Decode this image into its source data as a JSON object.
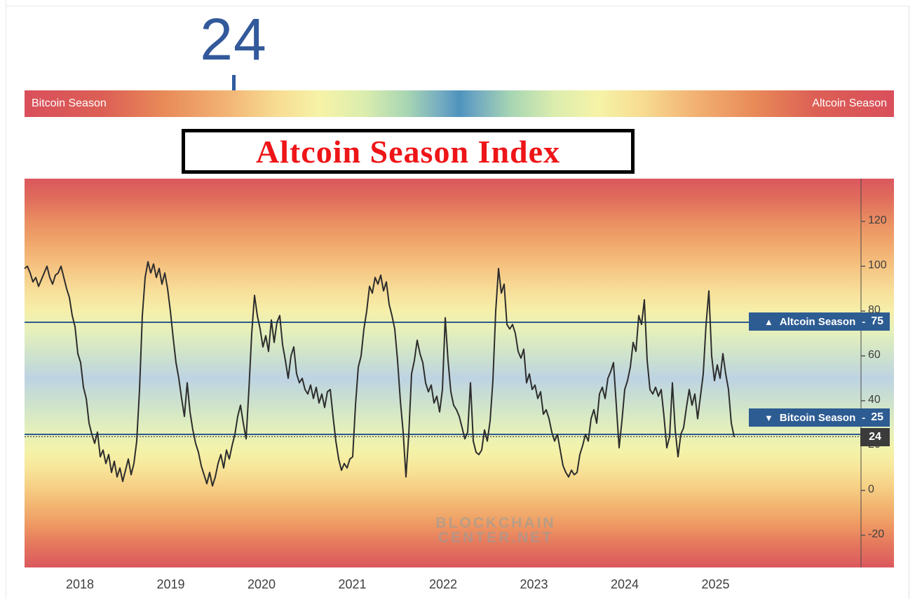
{
  "header": {
    "current_value": "24"
  },
  "season_bar": {
    "left_label": "Bitcoin Season",
    "right_label": "Altcoin Season",
    "marker_value": 24,
    "scale_min": 0,
    "scale_max": 100
  },
  "title_box": {
    "text": "Altcoin Season Index"
  },
  "watermark": {
    "line1": "BLOCKCHAIN",
    "line2": "CENTER.NET"
  },
  "colors": {
    "accent_blue": "#2f5b9f",
    "threshold_box_blue": "#2d5c92",
    "title_red": "#ee1518",
    "current_box_dark": "#3b3b3b",
    "line_black": "#2d2d2d"
  },
  "chart_data": {
    "type": "line",
    "title": "Altcoin Season Index",
    "x_ticks": [
      2018,
      2019,
      2020,
      2021,
      2022,
      2023,
      2024,
      2025
    ],
    "y_ticks": [
      120,
      100,
      80,
      60,
      40,
      20,
      0,
      -20
    ],
    "y_axis_side": "right",
    "grid": false,
    "legend": "none",
    "background": "season gradient red-orange-yellow-green-blue(center 50)-green-yellow-orange-red",
    "thresholds": {
      "altcoin": {
        "label": "▲ Altcoin Season",
        "value": 75
      },
      "bitcoin": {
        "label": "▼ Bitcoin Season",
        "value": 25
      },
      "current": {
        "value": 24,
        "style": "dotted"
      }
    },
    "series": {
      "name": "Altcoin Season Index",
      "t_start": 2017.39,
      "t_step": 0.030888,
      "values": [
        99,
        100,
        97,
        93,
        95,
        91,
        94,
        97,
        100,
        95,
        92,
        96,
        97,
        100,
        95,
        90,
        86,
        78,
        73,
        61,
        57,
        46,
        41,
        30,
        25,
        21,
        26,
        15,
        18,
        12,
        16,
        8,
        13,
        6,
        10,
        4,
        9,
        14,
        7,
        12,
        22,
        45,
        78,
        95,
        102,
        97,
        101,
        95,
        99,
        92,
        97,
        90,
        80,
        68,
        57,
        50,
        41,
        33,
        48,
        35,
        27,
        21,
        17,
        11,
        7,
        3,
        8,
        2,
        6,
        12,
        16,
        10,
        18,
        14,
        20,
        25,
        33,
        38,
        30,
        23,
        45,
        70,
        87,
        78,
        72,
        64,
        69,
        62,
        76,
        66,
        75,
        78,
        65,
        58,
        50,
        60,
        64,
        52,
        48,
        50,
        45,
        43,
        47,
        41,
        46,
        39,
        43,
        37,
        44,
        45,
        33,
        22,
        14,
        9,
        12,
        10,
        14,
        15,
        38,
        55,
        60,
        72,
        80,
        91,
        88,
        95,
        92,
        96,
        89,
        93,
        83,
        78,
        72,
        58,
        40,
        26,
        6,
        25,
        52,
        58,
        67,
        61,
        57,
        48,
        44,
        47,
        39,
        42,
        35,
        45,
        77,
        58,
        44,
        38,
        36,
        33,
        28,
        23,
        26,
        48,
        22,
        17,
        16,
        18,
        27,
        22,
        31,
        49,
        80,
        99,
        88,
        92,
        74,
        72,
        74,
        70,
        62,
        59,
        63,
        48,
        52,
        45,
        47,
        41,
        44,
        34,
        36,
        32,
        26,
        22,
        25,
        18,
        11,
        8,
        6,
        9,
        7,
        8,
        16,
        20,
        25,
        22,
        32,
        36,
        30,
        43,
        46,
        41,
        50,
        53,
        57,
        38,
        19,
        31,
        45,
        49,
        55,
        66,
        62,
        78,
        74,
        85,
        58,
        45,
        43,
        46,
        42,
        45,
        33,
        19,
        24,
        48,
        27,
        15,
        25,
        28,
        37,
        45,
        38,
        43,
        32,
        42,
        52,
        74,
        89,
        60,
        49,
        56,
        50,
        61,
        52,
        45,
        30,
        24
      ]
    }
  }
}
